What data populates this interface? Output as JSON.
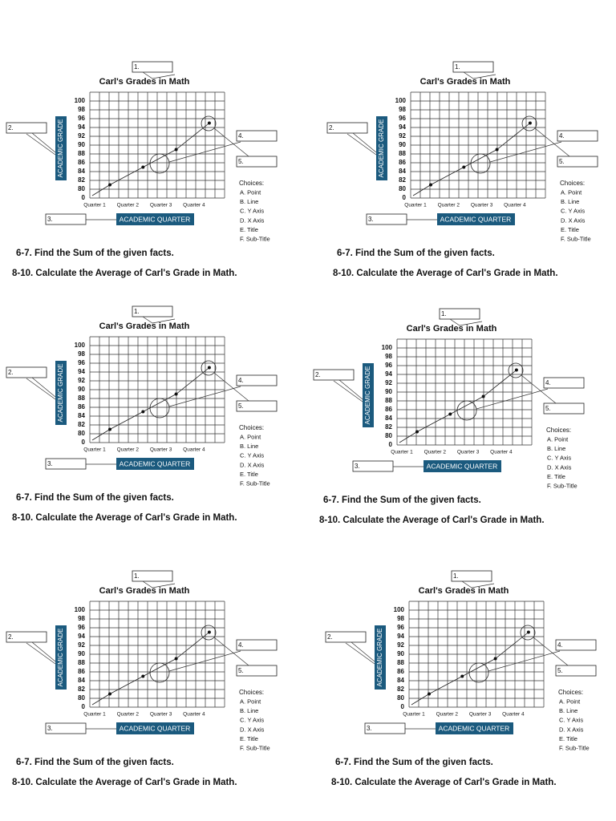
{
  "worksheet": {
    "title": "Carl's Grades in Math",
    "box_labels": [
      "1.",
      "2.",
      "3.",
      "4.",
      "5."
    ],
    "y_axis_label": "ACADEMIC GRADE",
    "x_axis_label": "ACADEMIC QUARTER",
    "chart": {
      "type": "line",
      "categories": [
        "Quarter 1",
        "Quarter 2",
        "Quarter 3",
        "Quarter 4"
      ],
      "values": [
        81,
        85,
        89,
        95
      ],
      "yticks": [
        0,
        80,
        82,
        84,
        86,
        88,
        90,
        92,
        94,
        96,
        98,
        100
      ]
    },
    "choices_title": "Choices:",
    "choices": [
      "A. Point",
      "B. Line",
      "C. Y Axis",
      "D. X Axis",
      "E. Title",
      "F. Sub-Title"
    ],
    "questions": [
      "6-7. Find the Sum of the given facts.",
      "8-10. Calculate the Average of Carl's Grade in Math."
    ]
  }
}
